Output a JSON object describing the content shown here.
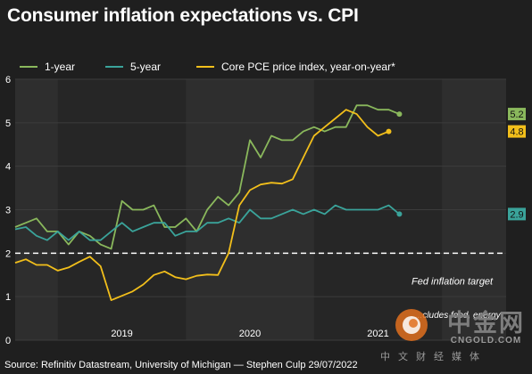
{
  "title": "Consumer inflation expectations vs. CPI",
  "footer": "Source: Refinitiv Datastream, University of Michigan — Stephen Culp 29/07/2022",
  "watermark": {
    "chinese_name": "中金网",
    "domain_text": "CNGOLD.COM",
    "tagline": "中文财经媒体"
  },
  "colors": {
    "one_year": "#8ab85c",
    "five_year": "#3aa39a",
    "core_pce": "#f2bf1b",
    "target_line": "#ffffff",
    "plot_bg": "#2e2e2e",
    "plot_band": "#262626"
  },
  "chart_data": {
    "type": "line",
    "title": "Consumer inflation expectations vs. CPI",
    "xlabel": "",
    "ylabel": "",
    "x_tick_labels": [
      "2019",
      "2020",
      "2021"
    ],
    "x_range": [
      "2018-09",
      "2022-07"
    ],
    "ylim": [
      0,
      6
    ],
    "y_ticks": [
      0,
      1,
      2,
      3,
      4,
      5,
      6
    ],
    "grid": true,
    "legend_position": "top",
    "reference_line": {
      "y": 2,
      "label": "Fed inflation target",
      "style": "dashed"
    },
    "partial_note": "...cludes food, energy",
    "series": [
      {
        "name": "1-year",
        "end_label": "5.2",
        "points": [
          [
            "2018-09",
            2.6
          ],
          [
            "2018-10",
            2.7
          ],
          [
            "2018-11",
            2.8
          ],
          [
            "2018-12",
            2.5
          ],
          [
            "2019-01",
            2.5
          ],
          [
            "2019-02",
            2.2
          ],
          [
            "2019-03",
            2.5
          ],
          [
            "2019-04",
            2.4
          ],
          [
            "2019-05",
            2.2
          ],
          [
            "2019-06",
            2.1
          ],
          [
            "2019-07",
            3.2
          ],
          [
            "2019-08",
            3.0
          ],
          [
            "2019-09",
            3.0
          ],
          [
            "2019-10",
            3.1
          ],
          [
            "2019-11",
            2.6
          ],
          [
            "2019-12",
            2.6
          ],
          [
            "2020-01",
            2.8
          ],
          [
            "2020-02",
            2.5
          ],
          [
            "2020-03",
            3.0
          ],
          [
            "2020-04",
            3.3
          ],
          [
            "2020-05",
            3.1
          ],
          [
            "2020-06",
            3.4
          ],
          [
            "2020-07",
            4.6
          ],
          [
            "2020-08",
            4.2
          ],
          [
            "2020-09",
            4.7
          ],
          [
            "2020-10",
            4.6
          ],
          [
            "2020-11",
            4.6
          ],
          [
            "2020-12",
            4.8
          ],
          [
            "2021-01",
            4.9
          ],
          [
            "2021-02",
            4.8
          ],
          [
            "2021-03",
            4.9
          ],
          [
            "2021-04",
            4.9
          ],
          [
            "2021-05",
            5.4
          ],
          [
            "2021-06",
            5.4
          ],
          [
            "2021-07",
            5.3
          ],
          [
            "2021-08",
            5.3
          ],
          [
            "2021-09",
            5.2
          ]
        ]
      },
      {
        "name": "5-year",
        "end_label": "2.9",
        "points": [
          [
            "2018-09",
            2.55
          ],
          [
            "2018-10",
            2.6
          ],
          [
            "2018-11",
            2.4
          ],
          [
            "2018-12",
            2.3
          ],
          [
            "2019-01",
            2.5
          ],
          [
            "2019-02",
            2.3
          ],
          [
            "2019-03",
            2.5
          ],
          [
            "2019-04",
            2.3
          ],
          [
            "2019-05",
            2.3
          ],
          [
            "2019-06",
            2.5
          ],
          [
            "2019-07",
            2.7
          ],
          [
            "2019-08",
            2.5
          ],
          [
            "2019-09",
            2.6
          ],
          [
            "2019-10",
            2.7
          ],
          [
            "2019-11",
            2.7
          ],
          [
            "2019-12",
            2.4
          ],
          [
            "2020-01",
            2.5
          ],
          [
            "2020-02",
            2.5
          ],
          [
            "2020-03",
            2.7
          ],
          [
            "2020-04",
            2.7
          ],
          [
            "2020-05",
            2.8
          ],
          [
            "2020-06",
            2.7
          ],
          [
            "2020-07",
            3.0
          ],
          [
            "2020-08",
            2.8
          ],
          [
            "2020-09",
            2.8
          ],
          [
            "2020-10",
            2.9
          ],
          [
            "2020-11",
            3.0
          ],
          [
            "2020-12",
            2.9
          ],
          [
            "2021-01",
            3.0
          ],
          [
            "2021-02",
            2.9
          ],
          [
            "2021-03",
            3.1
          ],
          [
            "2021-04",
            3.0
          ],
          [
            "2021-05",
            3.0
          ],
          [
            "2021-06",
            3.0
          ],
          [
            "2021-07",
            3.0
          ],
          [
            "2021-08",
            3.1
          ],
          [
            "2021-09",
            2.9
          ]
        ]
      },
      {
        "name": "Core PCE price index, year-on-year*",
        "end_label": "4.8",
        "points": [
          [
            "2018-09",
            1.78
          ],
          [
            "2018-10",
            1.86
          ],
          [
            "2018-11",
            1.73
          ],
          [
            "2018-12",
            1.73
          ],
          [
            "2019-01",
            1.6
          ],
          [
            "2019-02",
            1.67
          ],
          [
            "2019-03",
            1.8
          ],
          [
            "2019-04",
            1.92
          ],
          [
            "2019-05",
            1.7
          ],
          [
            "2019-06",
            0.92
          ],
          [
            "2019-07",
            1.02
          ],
          [
            "2019-08",
            1.12
          ],
          [
            "2019-09",
            1.28
          ],
          [
            "2019-10",
            1.5
          ],
          [
            "2019-11",
            1.58
          ],
          [
            "2019-12",
            1.45
          ],
          [
            "2020-01",
            1.4
          ],
          [
            "2020-02",
            1.48
          ],
          [
            "2020-03",
            1.51
          ],
          [
            "2020-04",
            1.5
          ],
          [
            "2020-05",
            2.0
          ],
          [
            "2020-06",
            3.1
          ],
          [
            "2020-07",
            3.45
          ],
          [
            "2020-08",
            3.58
          ],
          [
            "2020-09",
            3.62
          ],
          [
            "2020-10",
            3.6
          ],
          [
            "2020-11",
            3.7
          ],
          [
            "2020-12",
            4.2
          ],
          [
            "2021-01",
            4.7
          ],
          [
            "2021-02",
            4.9
          ],
          [
            "2021-03",
            5.1
          ],
          [
            "2021-04",
            5.3
          ],
          [
            "2021-05",
            5.2
          ],
          [
            "2021-06",
            4.9
          ],
          [
            "2021-07",
            4.7
          ],
          [
            "2021-08",
            4.8
          ]
        ]
      }
    ]
  }
}
